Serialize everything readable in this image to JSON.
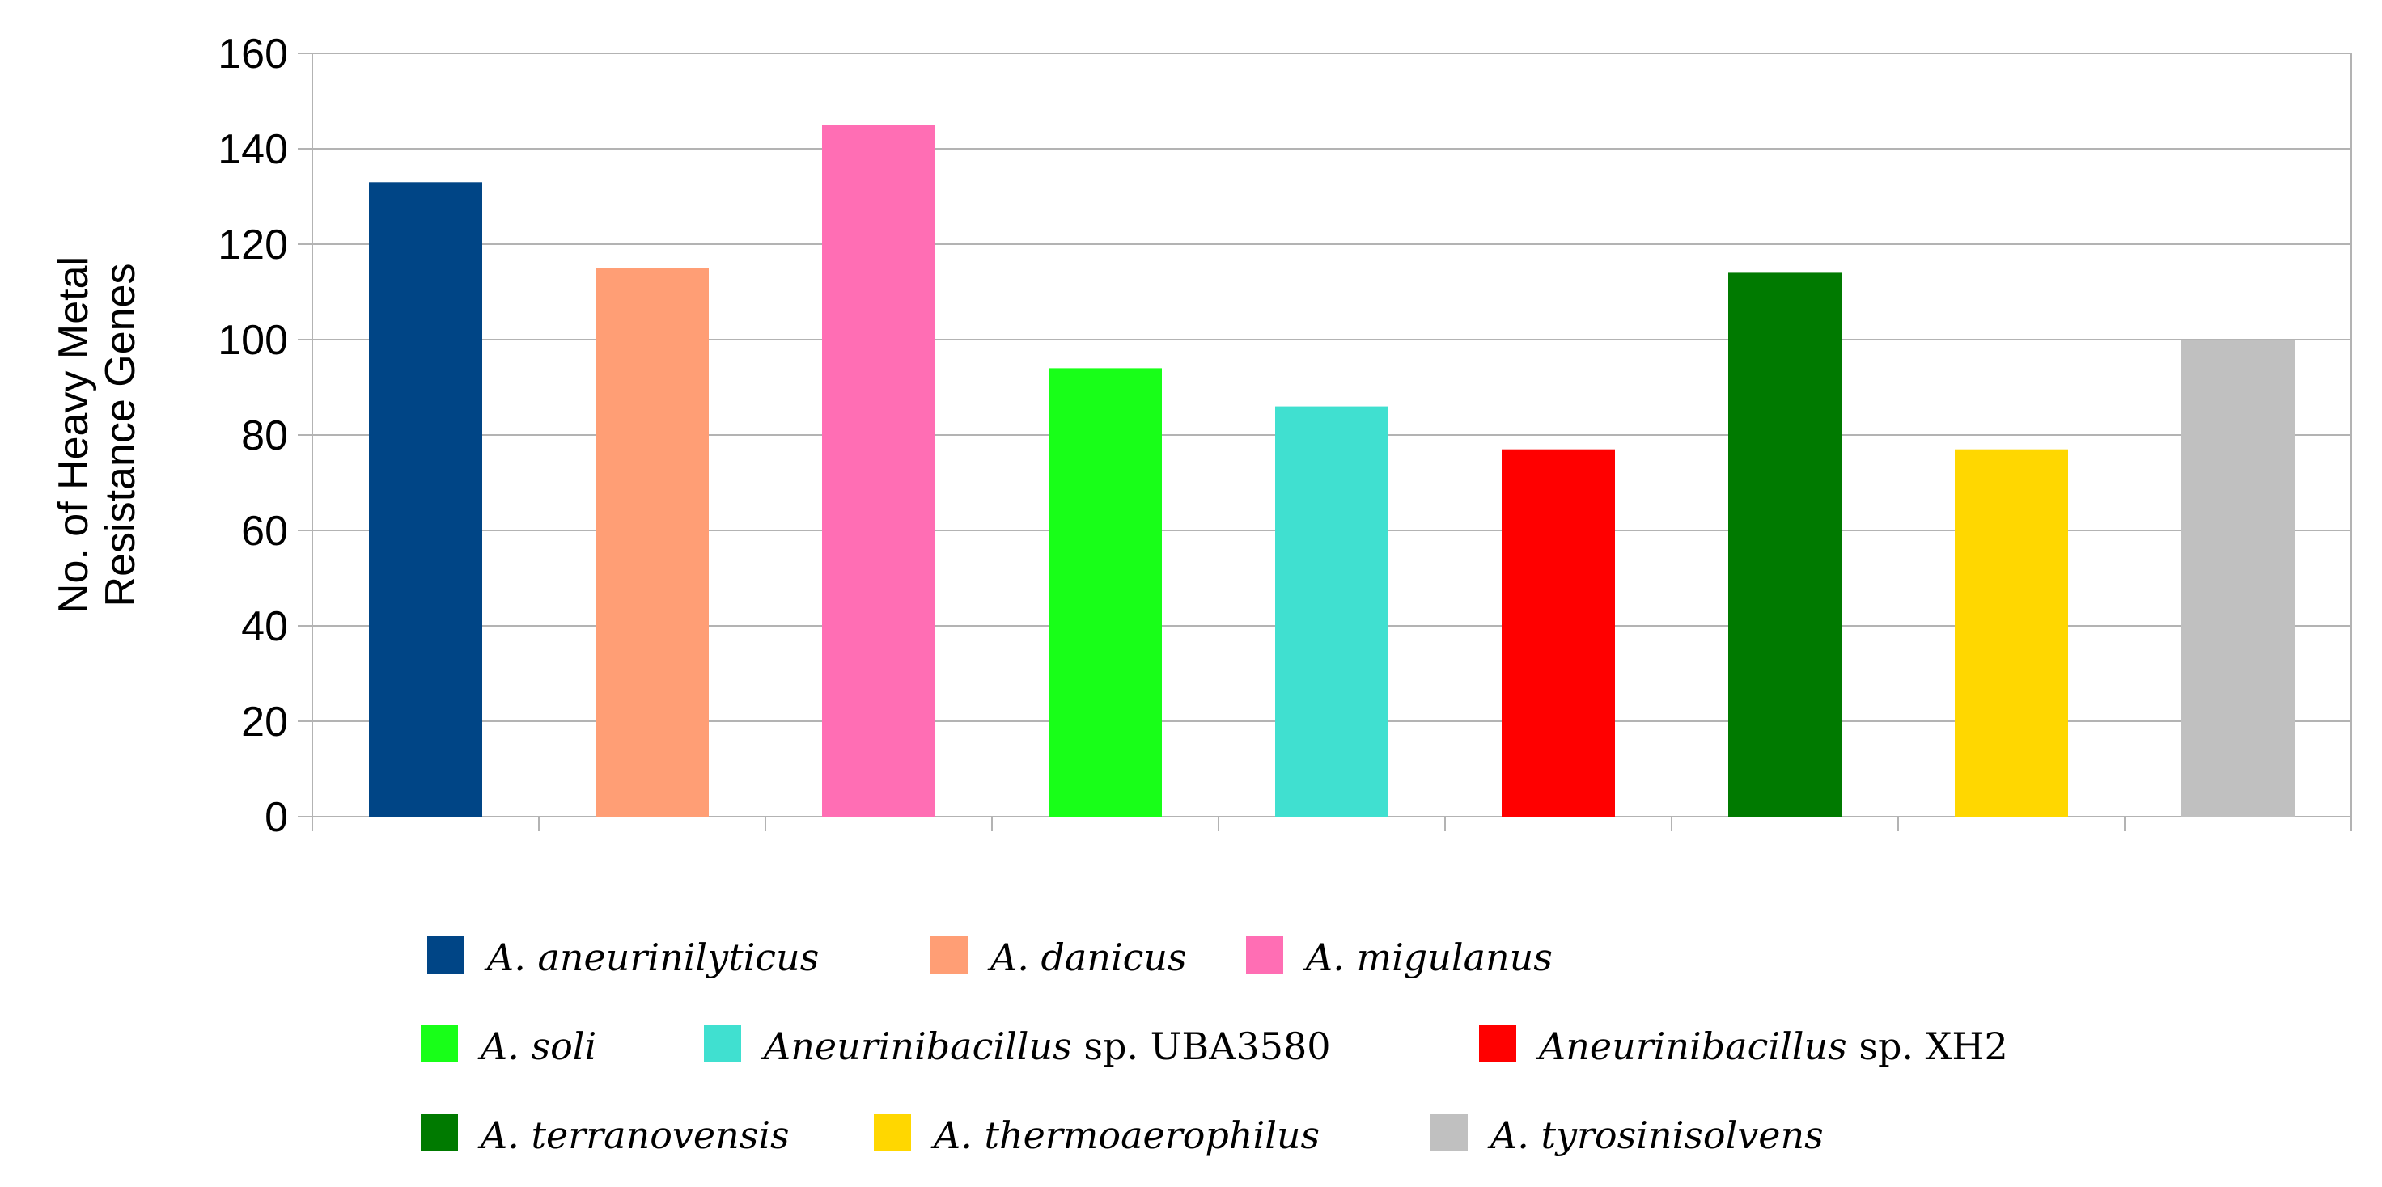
{
  "chart_data": {
    "type": "bar",
    "title": "",
    "xlabel": "",
    "ylabel_lines": [
      "No. of Heavy Metal",
      "Resistance Genes"
    ],
    "ylim": [
      0,
      160
    ],
    "yticks": [
      0,
      20,
      40,
      60,
      80,
      100,
      120,
      140,
      160
    ],
    "grid": true,
    "legend_position": "bottom",
    "categories": [
      "A. aneurinilyticus",
      "A. danicus",
      "A. migulanus",
      "A. soli",
      "Aneurinibacillus sp. UBA3580",
      "Aneurinibacillus sp. XH2",
      "A. terranovensis",
      "A. thermoaerophilus",
      "A. tyrosinisolvens"
    ],
    "values": [
      133,
      115,
      145,
      94,
      86,
      77,
      114,
      77,
      100
    ],
    "colors": [
      "#004586",
      "#ff9e75",
      "#ff6eb4",
      "#18ff18",
      "#40e0d0",
      "#ff0000",
      "#007a00",
      "#ffd700",
      "#c0c0c0"
    ],
    "legend": [
      {
        "parts": [
          {
            "text": "A. aneurinilyticus",
            "italic": true
          }
        ]
      },
      {
        "parts": [
          {
            "text": "A. danicus",
            "italic": true
          }
        ]
      },
      {
        "parts": [
          {
            "text": "A. migulanus",
            "italic": true
          }
        ]
      },
      {
        "parts": [
          {
            "text": "A. soli",
            "italic": true
          }
        ]
      },
      {
        "parts": [
          {
            "text": "Aneurinibacillus",
            "italic": true
          },
          {
            "text": " sp. UBA3580",
            "italic": false
          }
        ]
      },
      {
        "parts": [
          {
            "text": "Aneurinibacillus",
            "italic": true
          },
          {
            "text": " sp. XH2",
            "italic": false
          }
        ]
      },
      {
        "parts": [
          {
            "text": "A. terranovensis",
            "italic": true
          }
        ]
      },
      {
        "parts": [
          {
            "text": "A. thermoaerophilus",
            "italic": true
          }
        ]
      },
      {
        "parts": [
          {
            "text": "A. tyrosinisolvens",
            "italic": true
          }
        ]
      }
    ]
  }
}
